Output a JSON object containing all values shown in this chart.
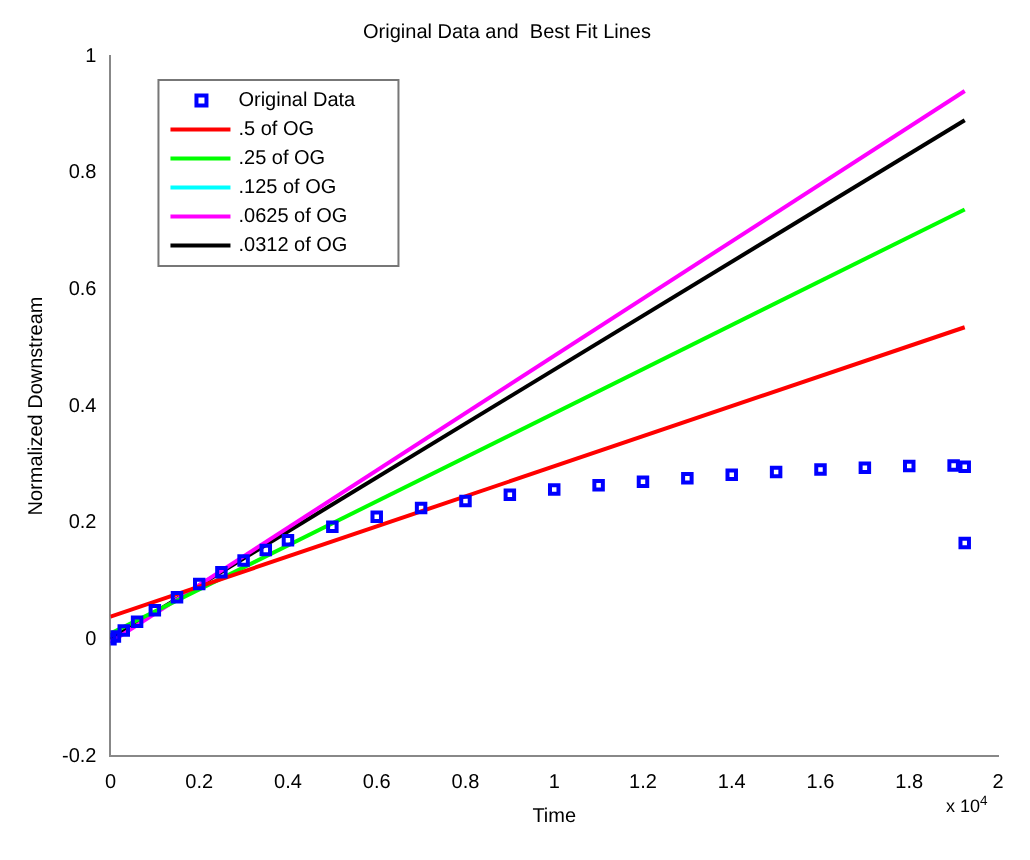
{
  "chart_data": {
    "type": "scatter",
    "title": "Original Data and  Best Fit Lines",
    "xlabel": "Time",
    "ylabel": "Normalized Downstream",
    "annotations": [
      "x 10$^{4}$"
    ],
    "xlim": [
      0,
      2
    ],
    "xticks": [
      0,
      0.2,
      0.4,
      0.6,
      0.8,
      1,
      1.2,
      1.4,
      1.6,
      1.8,
      2
    ],
    "ylim": [
      -0.2,
      1
    ],
    "yticks": [
      -0.2,
      0,
      0.2,
      0.4,
      0.6,
      0.8,
      1
    ],
    "grid": false,
    "legend": "top left",
    "series": [
      {
        "name": "Original Data",
        "color": "#0000ff",
        "marker": "square",
        "x": [
          0,
          0.01,
          0.03,
          0.06,
          0.1,
          0.15,
          0.2,
          0.25,
          0.3,
          0.35,
          0.4,
          0.5,
          0.6,
          0.7,
          0.8,
          0.9,
          1,
          1.1,
          1.2,
          1.3,
          1.4,
          1.5,
          1.6,
          1.7,
          1.8,
          1.9,
          1.925,
          1.925
        ],
        "values": [
          0,
          0.005,
          0.015,
          0.03,
          0.05,
          0.072,
          0.095,
          0.115,
          0.135,
          0.153,
          0.17,
          0.193,
          0.21,
          0.225,
          0.237,
          0.248,
          0.257,
          0.264,
          0.27,
          0.276,
          0.282,
          0.287,
          0.291,
          0.294,
          0.297,
          0.298,
          0.296,
          0.165
        ]
      },
      {
        "name": ".5 of OG",
        "type": "line",
        "color": "#ff0000",
        "x": [
          0,
          1.925
        ],
        "values": [
          0.039,
          0.535
        ]
      },
      {
        "name": ".25 of OG",
        "type": "line",
        "color": "#00ff00",
        "x": [
          0,
          1.925
        ],
        "values": [
          0.01,
          0.737
        ]
      },
      {
        "name": ".125 of OG",
        "type": "line",
        "color": "#00ffff",
        "values": [
          null,
          null
        ]
      },
      {
        "name": ".0625 of OG",
        "type": "line",
        "color": "#ff00ff",
        "x": [
          0,
          1.925
        ],
        "values": [
          -0.005,
          0.94
        ]
      },
      {
        "name": ".0312 of OG",
        "type": "line",
        "color": "#000000",
        "x": [
          0,
          1.925
        ],
        "values": [
          0,
          0.89
        ]
      }
    ]
  }
}
